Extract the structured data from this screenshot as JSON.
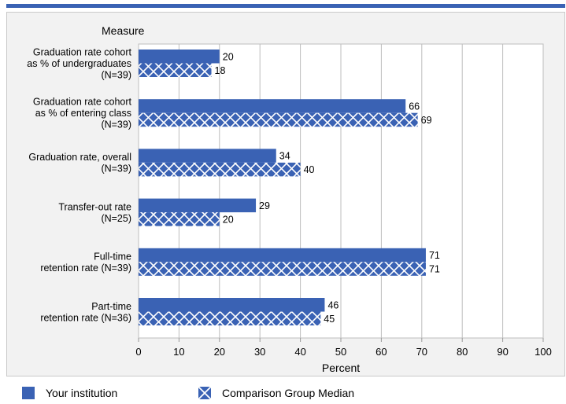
{
  "chart_data": {
    "type": "bar",
    "orientation": "horizontal",
    "category_header": "Measure",
    "xlabel": "Percent",
    "xlim": [
      0,
      100
    ],
    "xticks": [
      0,
      10,
      20,
      30,
      40,
      50,
      60,
      70,
      80,
      90,
      100
    ],
    "grid": true,
    "legend_position": "bottom",
    "categories": [
      [
        "Graduation rate cohort",
        "as % of undergraduates",
        "(N=39)"
      ],
      [
        "Graduation rate cohort",
        "as % of entering class",
        "(N=39)"
      ],
      [
        "Graduation rate, overall",
        "(N=39)"
      ],
      [
        "Transfer-out rate",
        "(N=25)"
      ],
      [
        "Full-time",
        "retention rate (N=39)"
      ],
      [
        "Part-time",
        "retention rate (N=36)"
      ]
    ],
    "series": [
      {
        "name": "Your institution",
        "pattern": "solid",
        "color": "#3a62b4",
        "values": [
          20,
          66,
          34,
          29,
          71,
          46
        ]
      },
      {
        "name": "Comparison Group Median",
        "pattern": "crosshatch",
        "color": "#3a62b4",
        "values": [
          18,
          69,
          40,
          20,
          71,
          45
        ]
      }
    ]
  }
}
